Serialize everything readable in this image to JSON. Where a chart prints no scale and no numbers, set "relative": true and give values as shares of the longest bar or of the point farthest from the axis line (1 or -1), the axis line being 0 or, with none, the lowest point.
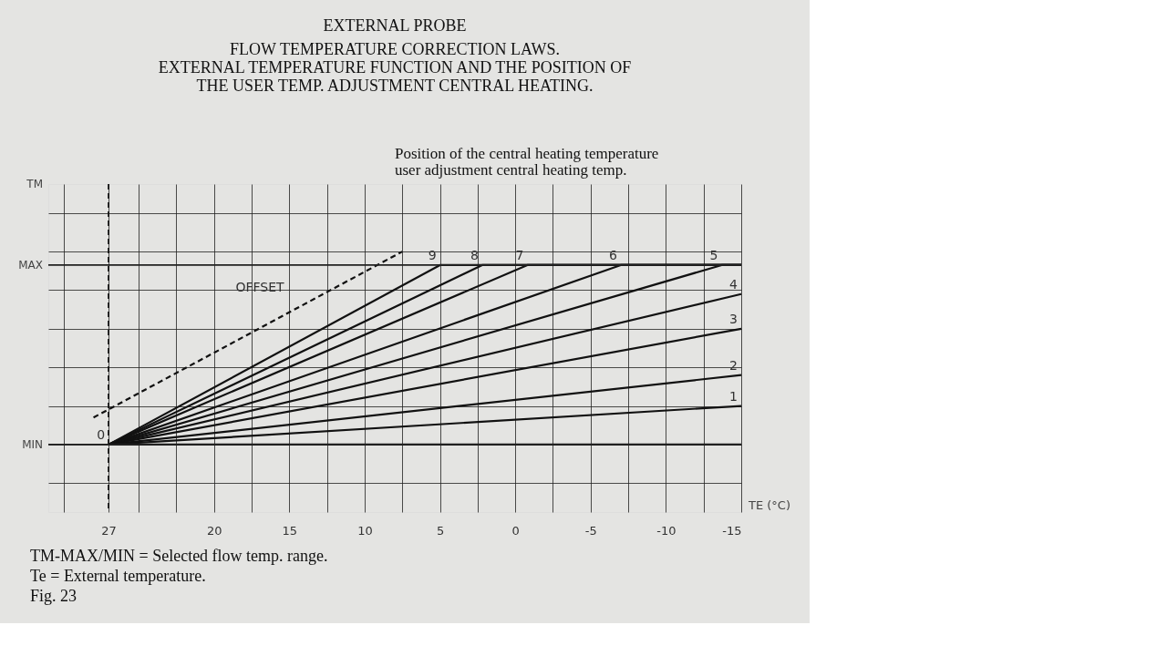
{
  "chart_data": {
    "type": "line",
    "title": "EXTERNAL PROBE",
    "subtitle": [
      "FLOW TEMPERATURE CORRECTION LAWS.",
      "EXTERNAL TEMPERATURE FUNCTION AND THE POSITION OF",
      "THE USER TEMP. ADJUSTMENT CENTRAL HEATING."
    ],
    "xlabel": "TE (°C)",
    "xlim": [
      31,
      -15
    ],
    "xticks": [
      {
        "value": 30,
        "label": null
      },
      27,
      {
        "value": 25,
        "label": null
      },
      {
        "value": 22.5,
        "label": null
      },
      20,
      {
        "value": 17.5,
        "label": null
      },
      15,
      {
        "value": 12.5,
        "label": null
      },
      10,
      {
        "value": 7.5,
        "label": null
      },
      5,
      {
        "value": 2.5,
        "label": null
      },
      0,
      {
        "value": -2.5,
        "label": null
      },
      -5,
      {
        "value": -7.5,
        "label": null
      },
      -10,
      {
        "value": -12.5,
        "label": null
      },
      -15
    ],
    "relative": true,
    "grid": true,
    "marker": "none",
    "line_style": "solid",
    "series": [
      {
        "name": "0",
        "color": "#111111",
        "x": [
          27,
          -15
        ],
        "values": [
          0,
          0
        ]
      },
      {
        "name": "1",
        "color": "#111111",
        "x": [
          27,
          -15
        ],
        "values": [
          0,
          0.2
        ]
      },
      {
        "name": "2",
        "color": "#111111",
        "x": [
          27,
          -15
        ],
        "values": [
          0,
          0.36
        ]
      },
      {
        "name": "3",
        "color": "#111111",
        "x": [
          27,
          -15
        ],
        "values": [
          0,
          0.6
        ]
      },
      {
        "name": "4",
        "color": "#111111",
        "x": [
          27,
          -15
        ],
        "values": [
          0,
          0.78
        ]
      },
      {
        "name": "5",
        "color": "#111111",
        "x": [
          27,
          -13.7,
          -15
        ],
        "values": [
          0,
          0.93,
          0.93
        ]
      },
      {
        "name": "6",
        "color": "#111111",
        "x": [
          27,
          -7,
          -15
        ],
        "values": [
          0,
          0.93,
          0.93
        ]
      },
      {
        "name": "7",
        "color": "#111111",
        "x": [
          27,
          -0.8,
          -15
        ],
        "values": [
          0,
          0.93,
          0.93
        ]
      },
      {
        "name": "8",
        "color": "#111111",
        "x": [
          27,
          2.2,
          -15
        ],
        "values": [
          0,
          0.93,
          0.93
        ]
      },
      {
        "name": "9",
        "color": "#111111",
        "x": [
          27,
          5,
          -15
        ],
        "values": [
          0,
          0.93,
          0.93
        ]
      },
      {
        "color": "#111111",
        "line_style": "dashed",
        "x": [
          28,
          7.5
        ],
        "values": [
          0.14,
          1
        ]
      }
    ],
    "ref_lines": [
      {
        "axis": "x",
        "value": 27,
        "color": "#111111",
        "line_style": "dashed"
      },
      {
        "axis": "y",
        "value": 0,
        "label": "MIN",
        "color": "#222222"
      },
      {
        "axis": "y",
        "value": 0.93,
        "label": "MAX",
        "color": "#222222"
      }
    ],
    "annotations": [
      {
        "text": "OFFSET",
        "x": 14.5,
        "y": 0.71
      },
      "TM",
      "Position of the central heating temperature user adjustment central heating temp.",
      "TM-MAX/MIN = Selected flow temp. range.",
      "Te = External temperature.",
      "Fig. 23"
    ]
  }
}
